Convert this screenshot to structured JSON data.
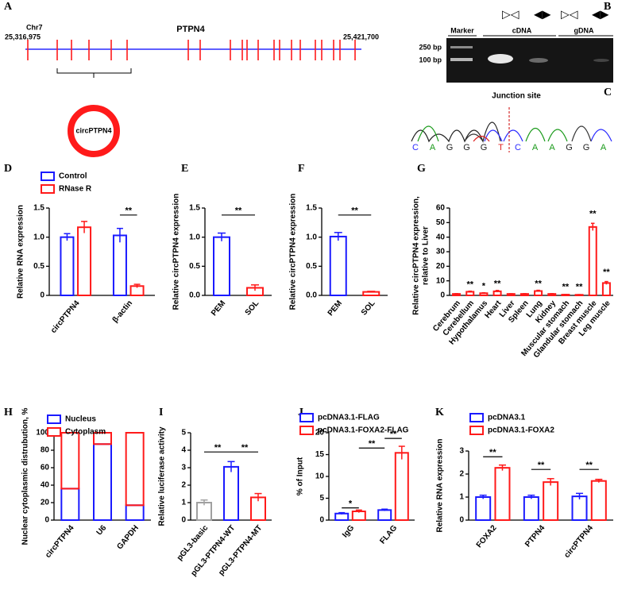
{
  "panel_a": {
    "label": "A",
    "chromosome": "Chr7",
    "start": "25,316,975",
    "gene": "PTPN4",
    "end": "25,421,700",
    "circle_label": "circPTPN4"
  },
  "panel_b": {
    "label": "B",
    "lanes": [
      "Marker",
      "cDNA",
      "gDNA"
    ],
    "sizes": [
      "250 bp",
      "100 bp"
    ],
    "primers": [
      "▷◁",
      "◀▶",
      "▷◁",
      "◀▶"
    ]
  },
  "panel_c": {
    "label": "C",
    "title": "Junction site",
    "bases": [
      "C",
      "A",
      "G",
      "G",
      "G",
      "T",
      "C",
      "A",
      "A",
      "G",
      "G",
      "A"
    ]
  },
  "chart_data": [
    {
      "type": "bar",
      "label": "D",
      "ylabel": "Relative RNA expression",
      "categories": [
        "circPTPN4",
        "β-actin"
      ],
      "series": [
        {
          "name": "Control",
          "color": "#1a1aff",
          "values": [
            1.0,
            1.03
          ],
          "errors": [
            0.06,
            0.12
          ]
        },
        {
          "name": "RNase R",
          "color": "#ff1a1a",
          "values": [
            1.17,
            0.16
          ],
          "errors": [
            0.1,
            0.03
          ]
        }
      ],
      "ylim": [
        0,
        1.5
      ],
      "yticks": [
        0,
        0.5,
        {
          "value": 1,
          "label": "1.0"
        },
        1.5
      ],
      "annotations": [
        "**"
      ]
    },
    {
      "type": "bar",
      "label": "E",
      "ylabel": "Relative circPTPN4 expression",
      "categories": [
        "PEM",
        "SOL"
      ],
      "series": [
        {
          "colors": [
            "#1a1aff",
            "#ff1a1a"
          ],
          "values": [
            1.0,
            0.13
          ],
          "errors": [
            0.07,
            0.05
          ]
        }
      ],
      "ylim": [
        0,
        1.5
      ],
      "yticks": [
        {
          "value": 0,
          "label": "0.0"
        },
        0.5,
        {
          "value": 1,
          "label": "1.0"
        },
        1.5
      ],
      "annotations": [
        "**"
      ]
    },
    {
      "type": "bar",
      "label": "F",
      "ylabel": "Relative circPTPN4 expression",
      "categories": [
        "PEM",
        "SOL"
      ],
      "series": [
        {
          "colors": [
            "#1a1aff",
            "#ff1a1a"
          ],
          "values": [
            1.01,
            0.06
          ],
          "errors": [
            0.07,
            0.01
          ]
        }
      ],
      "ylim": [
        0,
        1.5
      ],
      "yticks": [
        {
          "value": 0,
          "label": "0.0"
        },
        0.5,
        {
          "value": 1,
          "label": "1.0"
        },
        1.5
      ],
      "annotations": [
        "**"
      ]
    },
    {
      "type": "bar",
      "label": "G",
      "ylabel": [
        "Relative circPTPN4 expression,",
        "relative to Liver"
      ],
      "categories": [
        "Cerebrum",
        "Cerebellum",
        "Hypothalamus",
        "Heart",
        "Liver",
        "Spleen",
        "Lung",
        "Kidney",
        "Muscular stomach",
        "Glandular stomach",
        "Breast muscle",
        "Leg muscle"
      ],
      "series": [
        {
          "color": "#ff1a1a",
          "values": [
            1.0,
            2.5,
            1.5,
            2.8,
            1.0,
            1.0,
            3.0,
            1.0,
            0.5,
            0.4,
            47,
            8.5
          ],
          "errors": [
            0.2,
            0.4,
            0.3,
            0.6,
            0.1,
            0.2,
            0.5,
            0.2,
            0.1,
            0.1,
            2.5,
            1.0
          ]
        }
      ],
      "ylim": [
        0,
        60
      ],
      "yticks": [
        0,
        10,
        20,
        30,
        40,
        50,
        60
      ],
      "annotations": [
        null,
        "**",
        "*",
        "**",
        null,
        null,
        "**",
        null,
        "**",
        "**",
        "**",
        "**"
      ]
    },
    {
      "type": "stacked_bar",
      "label": "H",
      "ylabel": "Nuclear cytoplasmic distrubution, %",
      "categories": [
        "circPTPN4",
        "U6",
        "GAPDH"
      ],
      "series": [
        {
          "name": "Nucleus",
          "color": "#1a1aff",
          "values": [
            36,
            87,
            17
          ]
        },
        {
          "name": "Cytoplasm",
          "color": "#ff1a1a",
          "values": [
            64,
            13,
            83
          ]
        }
      ],
      "ylim": [
        0,
        100
      ],
      "yticks": [
        0,
        20,
        40,
        60,
        80,
        100
      ]
    },
    {
      "type": "bar",
      "label": "I",
      "ylabel": "Relative luciferase activity",
      "categories": [
        "pGL3-basic",
        "pGL3-PTPN4-WT",
        "pGL3-PTPN4-MT"
      ],
      "series": [
        {
          "colors": [
            "#a0a0a0",
            "#1a1aff",
            "#ff1a1a"
          ],
          "values": [
            1.0,
            3.05,
            1.3
          ],
          "errors": [
            0.15,
            0.3,
            0.22
          ]
        }
      ],
      "ylim": [
        0,
        5
      ],
      "yticks": [
        0,
        1,
        2,
        3,
        4,
        5
      ],
      "annotations": [
        "**",
        "**"
      ]
    },
    {
      "type": "bar",
      "label": "J",
      "ylabel": "% of Input",
      "categories": [
        "IgG",
        "FLAG"
      ],
      "series": [
        {
          "name": "pcDNA3.1-FLAG",
          "color": "#1a1aff",
          "values": [
            1.5,
            2.3
          ],
          "errors": [
            0.2,
            0.2
          ]
        },
        {
          "name": "pcDNA3.1-FOXA2-FLAG",
          "color": "#ff1a1a",
          "values": [
            2.0,
            15.4
          ],
          "errors": [
            0.3,
            1.5
          ]
        }
      ],
      "ylim": [
        0,
        20
      ],
      "yticks": [
        0,
        5,
        10,
        15,
        20
      ],
      "annotations": [
        "*",
        "**",
        "**"
      ]
    },
    {
      "type": "bar",
      "label": "K",
      "ylabel": "Relative RNA expression",
      "categories": [
        "FOXA2",
        "PTPN4",
        "circPTPN4"
      ],
      "series": [
        {
          "name": "pcDNA3.1",
          "color": "#1a1aff",
          "values": [
            1.0,
            1.0,
            1.03
          ],
          "errors": [
            0.08,
            0.08,
            0.13
          ]
        },
        {
          "name": "pcDNA3.1-FOXA2",
          "color": "#ff1a1a",
          "values": [
            2.27,
            1.65,
            1.7
          ],
          "errors": [
            0.12,
            0.15,
            0.07
          ]
        }
      ],
      "ylim": [
        0,
        3
      ],
      "yticks": [
        0,
        1,
        2,
        3
      ],
      "annotations": [
        "**",
        "**",
        "**"
      ]
    }
  ]
}
